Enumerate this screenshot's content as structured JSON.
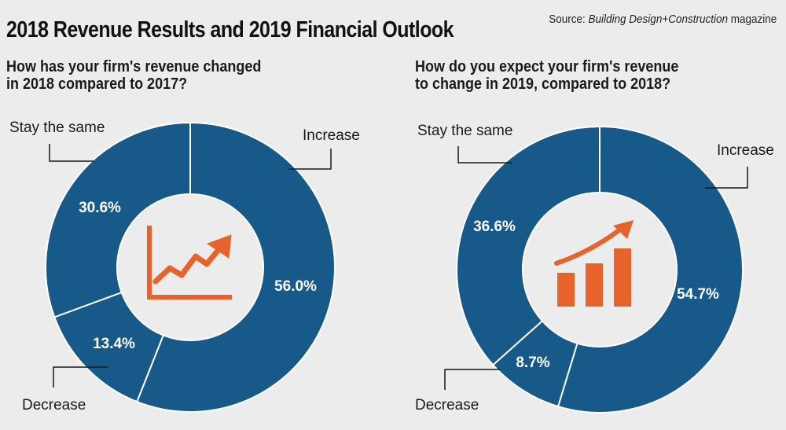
{
  "header": {
    "title": "2018 Revenue Results and 2019 Financial Outlook",
    "source_prefix": "Source: ",
    "source_name": "Building Design+Construction",
    "source_suffix": " magazine"
  },
  "colors": {
    "slice": "#175a8a",
    "slice_border": "#ffffff",
    "hole": "#ececec",
    "accent": "#e8622c",
    "text": "#1a1a1a"
  },
  "chart_data": [
    {
      "type": "pie",
      "style": "donut",
      "question_line1": "How has your firm's revenue changed",
      "question_line2": "in 2018 compared to 2017?",
      "categories": [
        "Increase",
        "Decrease",
        "Stay the same"
      ],
      "values": [
        56.0,
        13.4,
        30.6
      ],
      "value_labels": [
        "56.0%",
        "13.4%",
        "30.6%"
      ],
      "unit": "%",
      "center_icon": "rising-line-chart-icon"
    },
    {
      "type": "pie",
      "style": "donut",
      "question_line1": "How do you expect your firm's revenue",
      "question_line2": "to change in 2019, compared to 2018?",
      "categories": [
        "Increase",
        "Decrease",
        "Stay the same"
      ],
      "values": [
        54.7,
        8.7,
        36.6
      ],
      "value_labels": [
        "54.7%",
        "8.7%",
        "36.6%"
      ],
      "unit": "%",
      "center_icon": "rising-bar-chart-icon"
    }
  ]
}
